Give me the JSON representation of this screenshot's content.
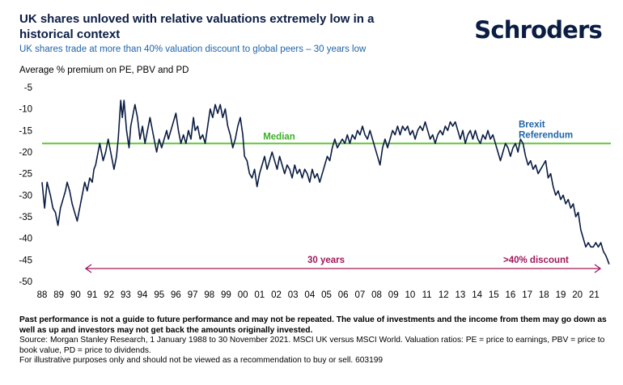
{
  "header": {
    "title": "UK shares unloved with relative valuations extremely low in a historical context",
    "subtitle": "UK shares trade at more than 40% valuation discount to global peers – 30 years low",
    "logo_text": "Schroders"
  },
  "colors": {
    "navy": "#0b1d43",
    "median_green": "#5bc236",
    "median_label": "#3fae2a",
    "brexit_blue": "#1f64a8",
    "arrow_magenta": "#a0175b"
  },
  "chart_data": {
    "type": "line",
    "ylabel": "Average % premium on PE, PBV and PD",
    "ylim": [
      -50,
      -5
    ],
    "yticks": [
      -5,
      -10,
      -15,
      -20,
      -25,
      -30,
      -35,
      -40,
      -45,
      -50
    ],
    "xlim": [
      1988,
      2022
    ],
    "xtick_labels": [
      "88",
      "89",
      "90",
      "91",
      "92",
      "93",
      "94",
      "95",
      "96",
      "97",
      "98",
      "99",
      "00",
      "01",
      "02",
      "03",
      "04",
      "05",
      "06",
      "07",
      "08",
      "09",
      "10",
      "11",
      "12",
      "13",
      "14",
      "15",
      "16",
      "17",
      "18",
      "19",
      "20",
      "21"
    ],
    "xticks": [
      1988,
      1989,
      1990,
      1991,
      1992,
      1993,
      1994,
      1995,
      1996,
      1997,
      1998,
      1999,
      2000,
      2001,
      2002,
      2003,
      2004,
      2005,
      2006,
      2007,
      2008,
      2009,
      2010,
      2011,
      2012,
      2013,
      2014,
      2015,
      2016,
      2017,
      2018,
      2019,
      2020,
      2021
    ],
    "median": {
      "value": -18,
      "label": "Median"
    },
    "annotations": {
      "brexit": "Brexit\nReferendum",
      "period": "30 years",
      "discount": ">40% discount"
    },
    "series": [
      {
        "points": [
          [
            1988.0,
            -27
          ],
          [
            1988.15,
            -33
          ],
          [
            1988.3,
            -27
          ],
          [
            1988.5,
            -30
          ],
          [
            1988.65,
            -33
          ],
          [
            1988.8,
            -34
          ],
          [
            1988.95,
            -37
          ],
          [
            1989.1,
            -33
          ],
          [
            1989.25,
            -31
          ],
          [
            1989.4,
            -29
          ],
          [
            1989.5,
            -27
          ],
          [
            1989.65,
            -29
          ],
          [
            1989.8,
            -32
          ],
          [
            1989.95,
            -34
          ],
          [
            1990.1,
            -36
          ],
          [
            1990.25,
            -33
          ],
          [
            1990.4,
            -30
          ],
          [
            1990.55,
            -27
          ],
          [
            1990.7,
            -29
          ],
          [
            1990.85,
            -26
          ],
          [
            1991.0,
            -27
          ],
          [
            1991.1,
            -24
          ],
          [
            1991.2,
            -23
          ],
          [
            1991.3,
            -21
          ],
          [
            1991.45,
            -18
          ],
          [
            1991.55,
            -20
          ],
          [
            1991.65,
            -22
          ],
          [
            1991.8,
            -20
          ],
          [
            1991.95,
            -17
          ],
          [
            1992.1,
            -20
          ],
          [
            1992.3,
            -24
          ],
          [
            1992.45,
            -21
          ],
          [
            1992.55,
            -17
          ],
          [
            1992.7,
            -8
          ],
          [
            1992.8,
            -12
          ],
          [
            1992.9,
            -8
          ],
          [
            1993.05,
            -15
          ],
          [
            1993.2,
            -19
          ],
          [
            1993.3,
            -14
          ],
          [
            1993.45,
            -11
          ],
          [
            1993.55,
            -9
          ],
          [
            1993.7,
            -12
          ],
          [
            1993.85,
            -17
          ],
          [
            1994.0,
            -14
          ],
          [
            1994.15,
            -18
          ],
          [
            1994.3,
            -15
          ],
          [
            1994.45,
            -12
          ],
          [
            1994.55,
            -14
          ],
          [
            1994.7,
            -17
          ],
          [
            1994.85,
            -20
          ],
          [
            1995.0,
            -17
          ],
          [
            1995.15,
            -19
          ],
          [
            1995.3,
            -17
          ],
          [
            1995.45,
            -15
          ],
          [
            1995.55,
            -17
          ],
          [
            1995.7,
            -15
          ],
          [
            1995.85,
            -13
          ],
          [
            1996.0,
            -11
          ],
          [
            1996.15,
            -15
          ],
          [
            1996.3,
            -18
          ],
          [
            1996.45,
            -16
          ],
          [
            1996.6,
            -18
          ],
          [
            1996.75,
            -15
          ],
          [
            1996.9,
            -17
          ],
          [
            1997.05,
            -12
          ],
          [
            1997.15,
            -15
          ],
          [
            1997.3,
            -14
          ],
          [
            1997.45,
            -17
          ],
          [
            1997.6,
            -16
          ],
          [
            1997.75,
            -18
          ],
          [
            1997.9,
            -14
          ],
          [
            1998.05,
            -10
          ],
          [
            1998.2,
            -12
          ],
          [
            1998.35,
            -9
          ],
          [
            1998.5,
            -11
          ],
          [
            1998.65,
            -9
          ],
          [
            1998.8,
            -12
          ],
          [
            1998.95,
            -10
          ],
          [
            1999.1,
            -14
          ],
          [
            1999.25,
            -16
          ],
          [
            1999.4,
            -19
          ],
          [
            1999.55,
            -17
          ],
          [
            1999.7,
            -14
          ],
          [
            1999.85,
            -12
          ],
          [
            2000.0,
            -16
          ],
          [
            2000.1,
            -21
          ],
          [
            2000.25,
            -22
          ],
          [
            2000.4,
            -25
          ],
          [
            2000.55,
            -26
          ],
          [
            2000.7,
            -24
          ],
          [
            2000.85,
            -28
          ],
          [
            2001.0,
            -25
          ],
          [
            2001.15,
            -23
          ],
          [
            2001.3,
            -21
          ],
          [
            2001.45,
            -24
          ],
          [
            2001.6,
            -22
          ],
          [
            2001.75,
            -20
          ],
          [
            2001.9,
            -22
          ],
          [
            2002.05,
            -24
          ],
          [
            2002.2,
            -21
          ],
          [
            2002.35,
            -23
          ],
          [
            2002.5,
            -25
          ],
          [
            2002.65,
            -23
          ],
          [
            2002.8,
            -24
          ],
          [
            2002.95,
            -26
          ],
          [
            2003.1,
            -23
          ],
          [
            2003.25,
            -25
          ],
          [
            2003.4,
            -24
          ],
          [
            2003.55,
            -26
          ],
          [
            2003.7,
            -24
          ],
          [
            2003.85,
            -25
          ],
          [
            2004.0,
            -27
          ],
          [
            2004.15,
            -24
          ],
          [
            2004.3,
            -26
          ],
          [
            2004.45,
            -25
          ],
          [
            2004.6,
            -27
          ],
          [
            2004.75,
            -25
          ],
          [
            2004.9,
            -23
          ],
          [
            2005.05,
            -21
          ],
          [
            2005.2,
            -22
          ],
          [
            2005.35,
            -19
          ],
          [
            2005.5,
            -17
          ],
          [
            2005.65,
            -19
          ],
          [
            2005.8,
            -18
          ],
          [
            2005.95,
            -17
          ],
          [
            2006.1,
            -18
          ],
          [
            2006.25,
            -16
          ],
          [
            2006.4,
            -18
          ],
          [
            2006.55,
            -16
          ],
          [
            2006.7,
            -17
          ],
          [
            2006.85,
            -15
          ],
          [
            2007.0,
            -16
          ],
          [
            2007.15,
            -14
          ],
          [
            2007.3,
            -16
          ],
          [
            2007.45,
            -17
          ],
          [
            2007.6,
            -15
          ],
          [
            2007.75,
            -17
          ],
          [
            2007.9,
            -19
          ],
          [
            2008.05,
            -21
          ],
          [
            2008.2,
            -23
          ],
          [
            2008.35,
            -19
          ],
          [
            2008.5,
            -17
          ],
          [
            2008.65,
            -19
          ],
          [
            2008.8,
            -17
          ],
          [
            2008.95,
            -15
          ],
          [
            2009.1,
            -16
          ],
          [
            2009.25,
            -14
          ],
          [
            2009.4,
            -16
          ],
          [
            2009.55,
            -14
          ],
          [
            2009.7,
            -15
          ],
          [
            2009.85,
            -14
          ],
          [
            2010.0,
            -16
          ],
          [
            2010.15,
            -15
          ],
          [
            2010.3,
            -17
          ],
          [
            2010.45,
            -15
          ],
          [
            2010.6,
            -14
          ],
          [
            2010.75,
            -15
          ],
          [
            2010.9,
            -13
          ],
          [
            2011.05,
            -15
          ],
          [
            2011.2,
            -17
          ],
          [
            2011.35,
            -16
          ],
          [
            2011.5,
            -18
          ],
          [
            2011.65,
            -16
          ],
          [
            2011.8,
            -15
          ],
          [
            2011.95,
            -16
          ],
          [
            2012.1,
            -14
          ],
          [
            2012.25,
            -15
          ],
          [
            2012.4,
            -13
          ],
          [
            2012.55,
            -14
          ],
          [
            2012.7,
            -13
          ],
          [
            2012.85,
            -15
          ],
          [
            2013.0,
            -17
          ],
          [
            2013.15,
            -15
          ],
          [
            2013.3,
            -18
          ],
          [
            2013.45,
            -16
          ],
          [
            2013.6,
            -15
          ],
          [
            2013.75,
            -17
          ],
          [
            2013.9,
            -15
          ],
          [
            2014.05,
            -17
          ],
          [
            2014.2,
            -18
          ],
          [
            2014.35,
            -16
          ],
          [
            2014.5,
            -17
          ],
          [
            2014.65,
            -15
          ],
          [
            2014.8,
            -17
          ],
          [
            2014.95,
            -16
          ],
          [
            2015.1,
            -18
          ],
          [
            2015.25,
            -20
          ],
          [
            2015.4,
            -22
          ],
          [
            2015.55,
            -20
          ],
          [
            2015.7,
            -18
          ],
          [
            2015.85,
            -19
          ],
          [
            2016.0,
            -21
          ],
          [
            2016.15,
            -19
          ],
          [
            2016.3,
            -18
          ],
          [
            2016.45,
            -20
          ],
          [
            2016.6,
            -17
          ],
          [
            2016.75,
            -18
          ],
          [
            2016.9,
            -21
          ],
          [
            2017.05,
            -23
          ],
          [
            2017.2,
            -22
          ],
          [
            2017.35,
            -24
          ],
          [
            2017.5,
            -23
          ],
          [
            2017.65,
            -25
          ],
          [
            2017.8,
            -24
          ],
          [
            2017.95,
            -23
          ],
          [
            2018.1,
            -22
          ],
          [
            2018.25,
            -26
          ],
          [
            2018.4,
            -25
          ],
          [
            2018.55,
            -28
          ],
          [
            2018.7,
            -30
          ],
          [
            2018.85,
            -29
          ],
          [
            2019.0,
            -31
          ],
          [
            2019.15,
            -30
          ],
          [
            2019.3,
            -32
          ],
          [
            2019.45,
            -31
          ],
          [
            2019.6,
            -33
          ],
          [
            2019.75,
            -32
          ],
          [
            2019.9,
            -35
          ],
          [
            2020.05,
            -34
          ],
          [
            2020.2,
            -38
          ],
          [
            2020.35,
            -40
          ],
          [
            2020.5,
            -42
          ],
          [
            2020.65,
            -41
          ],
          [
            2020.8,
            -42
          ],
          [
            2020.95,
            -42
          ],
          [
            2021.1,
            -41
          ],
          [
            2021.25,
            -42
          ],
          [
            2021.4,
            -41
          ],
          [
            2021.55,
            -43
          ],
          [
            2021.7,
            -44
          ],
          [
            2021.8,
            -45
          ],
          [
            2021.9,
            -46
          ]
        ]
      }
    ]
  },
  "footer": {
    "disclaimer": "Past performance is not a guide to future performance and may not be repeated. The value of investments and the income from them may go down as well as up and investors may not get back the amounts originally invested.",
    "source": "Source: Morgan Stanley Research, 1 January 1988 to 30 November 2021. MSCI UK versus MSCI World. Valuation ratios: PE = price to earnings, PBV = price to book value, PD = price to dividends.",
    "illustrative": "For illustrative purposes only and should not be viewed as a recommendation to buy or sell. 603199"
  }
}
